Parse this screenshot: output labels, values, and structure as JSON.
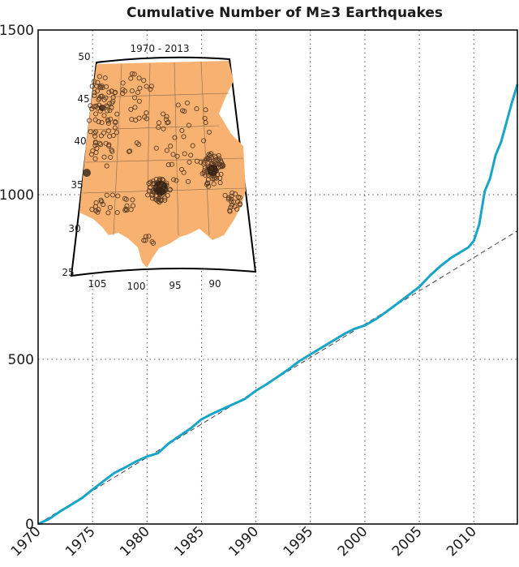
{
  "chart_data": {
    "type": "line",
    "title": "Cumulative Number of M≥3 Earthquakes",
    "xlabel": "",
    "ylabel": "",
    "xlim": [
      1970,
      2014
    ],
    "ylim": [
      0,
      1500
    ],
    "x_ticks": [
      "1970",
      "1975",
      "1980",
      "1985",
      "1990",
      "1995",
      "2000",
      "2005",
      "2010"
    ],
    "y_ticks": [
      "0",
      "500",
      "1000",
      "1500"
    ],
    "grid": true,
    "series": [
      {
        "color": "#19a5c8",
        "x": [
          1970,
          1971,
          1972,
          1973,
          1974,
          1975,
          1976,
          1977,
          1978,
          1979,
          1980,
          1981,
          1982,
          1983,
          1984,
          1985,
          1986,
          1987,
          1988,
          1989,
          1990,
          1991,
          1992,
          1993,
          1994,
          1995,
          1996,
          1997,
          1998,
          1999,
          2000,
          2001,
          2002,
          2003,
          2004,
          2005,
          2006,
          2007,
          2008,
          2009,
          2009.5,
          2010,
          2010.5,
          2011,
          2011.5,
          2012,
          2012.5,
          2013,
          2013.5,
          2014
        ],
        "y": [
          0,
          15,
          38,
          58,
          78,
          105,
          130,
          155,
          172,
          190,
          205,
          215,
          245,
          268,
          290,
          318,
          335,
          350,
          365,
          380,
          405,
          425,
          447,
          470,
          495,
          515,
          535,
          555,
          575,
          592,
          603,
          622,
          645,
          670,
          695,
          720,
          755,
          785,
          810,
          830,
          840,
          860,
          910,
          1010,
          1050,
          1120,
          1160,
          1220,
          1280,
          1335
        ]
      },
      {
        "style": "dashed",
        "color": "#444444",
        "x": [
          1970,
          2014
        ],
        "y": [
          0,
          890
        ]
      }
    ]
  },
  "inset": {
    "title": "1970 - 2013",
    "lat_labels": [
      "50",
      "45",
      "40",
      "35",
      "30",
      "25"
    ],
    "lon_labels": [
      "105",
      "100",
      "95",
      "90"
    ],
    "land_color": "#f7b271"
  }
}
